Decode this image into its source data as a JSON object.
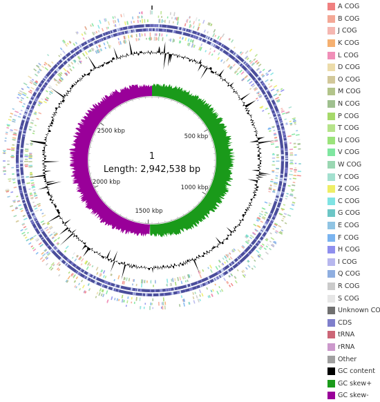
{
  "map": {
    "contig_number": "1",
    "length_text": "Length: 2,942,538 bp",
    "genome_length_bp": 2942538,
    "position_labels": [
      {
        "bp": 500000,
        "text": "500 kbp"
      },
      {
        "bp": 1000000,
        "text": "1000 kbp"
      },
      {
        "bp": 1500000,
        "text": "1500 kbp"
      },
      {
        "bp": 2000000,
        "text": "2000 kbp"
      },
      {
        "bp": 2500000,
        "text": "2500 kbp"
      }
    ],
    "gc_skew_switch_fraction": 0.505,
    "colors": {
      "gc_content": "#000000",
      "gc_skew_plus": "#1a9a1a",
      "gc_skew_minus": "#990099",
      "cds": "#3f4dab"
    }
  },
  "legend": [
    {
      "label": "A COG",
      "color": "#f08080"
    },
    {
      "label": "B COG",
      "color": "#f4a896"
    },
    {
      "label": "J COG",
      "color": "#f5b7b1"
    },
    {
      "label": "K COG",
      "color": "#f5b070"
    },
    {
      "label": "L COG",
      "color": "#f08fb8"
    },
    {
      "label": "D COG",
      "color": "#ecdcaa"
    },
    {
      "label": "O COG",
      "color": "#d2c89a"
    },
    {
      "label": "M COG",
      "color": "#b2c48a"
    },
    {
      "label": "N COG",
      "color": "#9fc08f"
    },
    {
      "label": "P COG",
      "color": "#a6d96a"
    },
    {
      "label": "T COG",
      "color": "#b6e38a"
    },
    {
      "label": "U COG",
      "color": "#9be37b"
    },
    {
      "label": "V COG",
      "color": "#7fe6a0"
    },
    {
      "label": "W COG",
      "color": "#9ad7b2"
    },
    {
      "label": "Y COG",
      "color": "#a3e0cf"
    },
    {
      "label": "Z COG",
      "color": "#eeee66"
    },
    {
      "label": "C COG",
      "color": "#7fe3e3"
    },
    {
      "label": "G COG",
      "color": "#6cc6c6"
    },
    {
      "label": "E COG",
      "color": "#90c4e3"
    },
    {
      "label": "F COG",
      "color": "#7ab4f0"
    },
    {
      "label": "H COG",
      "color": "#8f8fee"
    },
    {
      "label": "I COG",
      "color": "#b7b7ee"
    },
    {
      "label": "Q COG",
      "color": "#8faee0"
    },
    {
      "label": "R COG",
      "color": "#cbcbcb"
    },
    {
      "label": "S COG",
      "color": "#e6e6e6"
    },
    {
      "label": "Unknown COG",
      "color": "#707070"
    },
    {
      "label": "CDS",
      "color": "#7f7fcc"
    },
    {
      "label": "tRNA",
      "color": "#cc6677"
    },
    {
      "label": "rRNA",
      "color": "#cc99cc"
    },
    {
      "label": "Other",
      "color": "#a0a0a0"
    },
    {
      "label": "GC content",
      "color": "#000000"
    },
    {
      "label": "GC skew+",
      "color": "#1a9a1a"
    },
    {
      "label": "GC skew-",
      "color": "#990099"
    }
  ]
}
